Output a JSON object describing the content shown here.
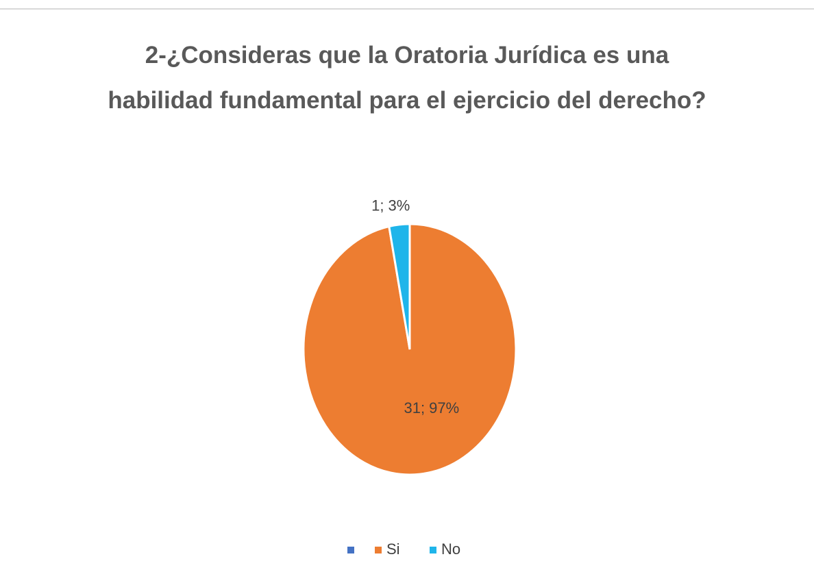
{
  "chart_data": {
    "type": "pie",
    "title": "2-¿Consideras que la Oratoria Jurídica es una habilidad fundamental para el ejercicio del derecho?",
    "categories": [
      null,
      "Si",
      "No"
    ],
    "values": [
      0,
      31,
      1
    ],
    "value_labels": [
      null,
      "31; 97%",
      "1; 3%"
    ],
    "colors": [
      "#4472c4",
      "#ed7d31",
      "#1fb5ea"
    ],
    "legend": "bottom"
  }
}
